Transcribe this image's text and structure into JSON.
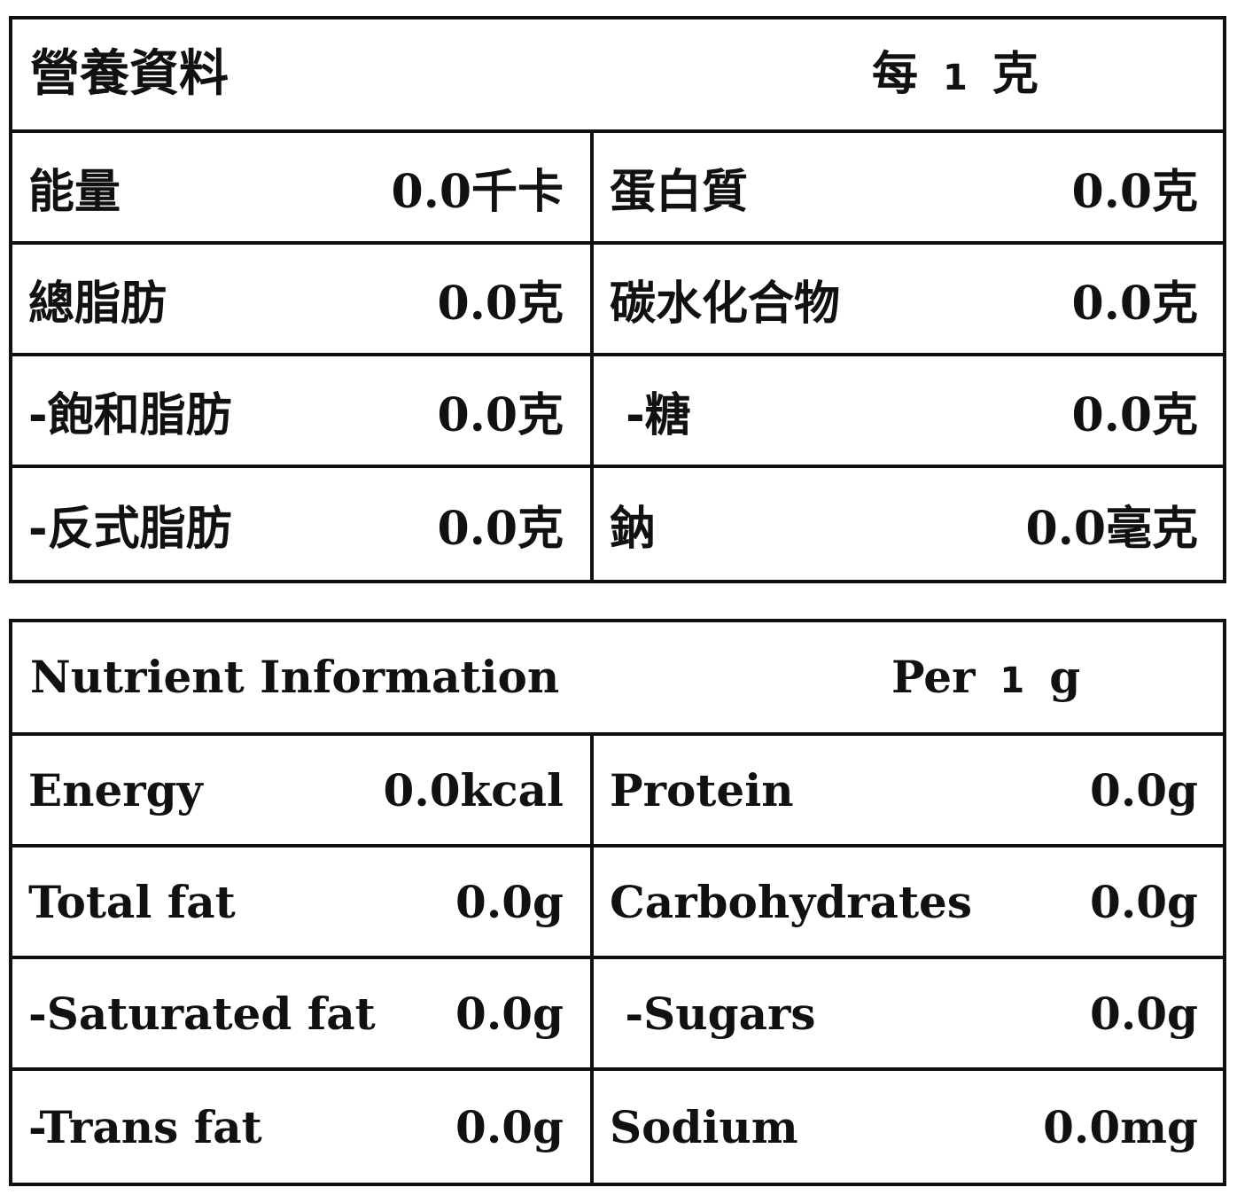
{
  "zh": {
    "title": "營養資料",
    "per_prefix": "每",
    "per_amount": "1",
    "per_unit": "克",
    "rows": [
      {
        "left_label": "能量",
        "left_value": "0.0千卡",
        "right_label": "蛋白質",
        "right_value": "0.0克"
      },
      {
        "left_label": "總脂肪",
        "left_value": "0.0克",
        "right_label": "碳水化合物",
        "right_value": "0.0克"
      },
      {
        "left_label": "-飽和脂肪",
        "left_value": "0.0克",
        "right_label": " -糖",
        "right_value": "0.0克"
      },
      {
        "left_label": "-反式脂肪",
        "left_value": "0.0克",
        "right_label": "鈉",
        "right_value": "0.0毫克"
      }
    ]
  },
  "en": {
    "title": "Nutrient Information",
    "per_prefix": "Per",
    "per_amount": "1",
    "per_unit": "g",
    "rows": [
      {
        "left_label": "Energy",
        "left_value": "0.0kcal",
        "right_label": "Protein",
        "right_value": "0.0g"
      },
      {
        "left_label": "Total fat",
        "left_value": "0.0g",
        "right_label": "Carbohydrates",
        "right_value": "0.0g"
      },
      {
        "left_label": "-Saturated fat",
        "left_value": "0.0g",
        "right_label": " -Sugars",
        "right_value": "0.0g"
      },
      {
        "left_label": "-Trans fat",
        "left_value": "0.0g",
        "right_label": "Sodium",
        "right_value": "0.0mg"
      }
    ]
  }
}
